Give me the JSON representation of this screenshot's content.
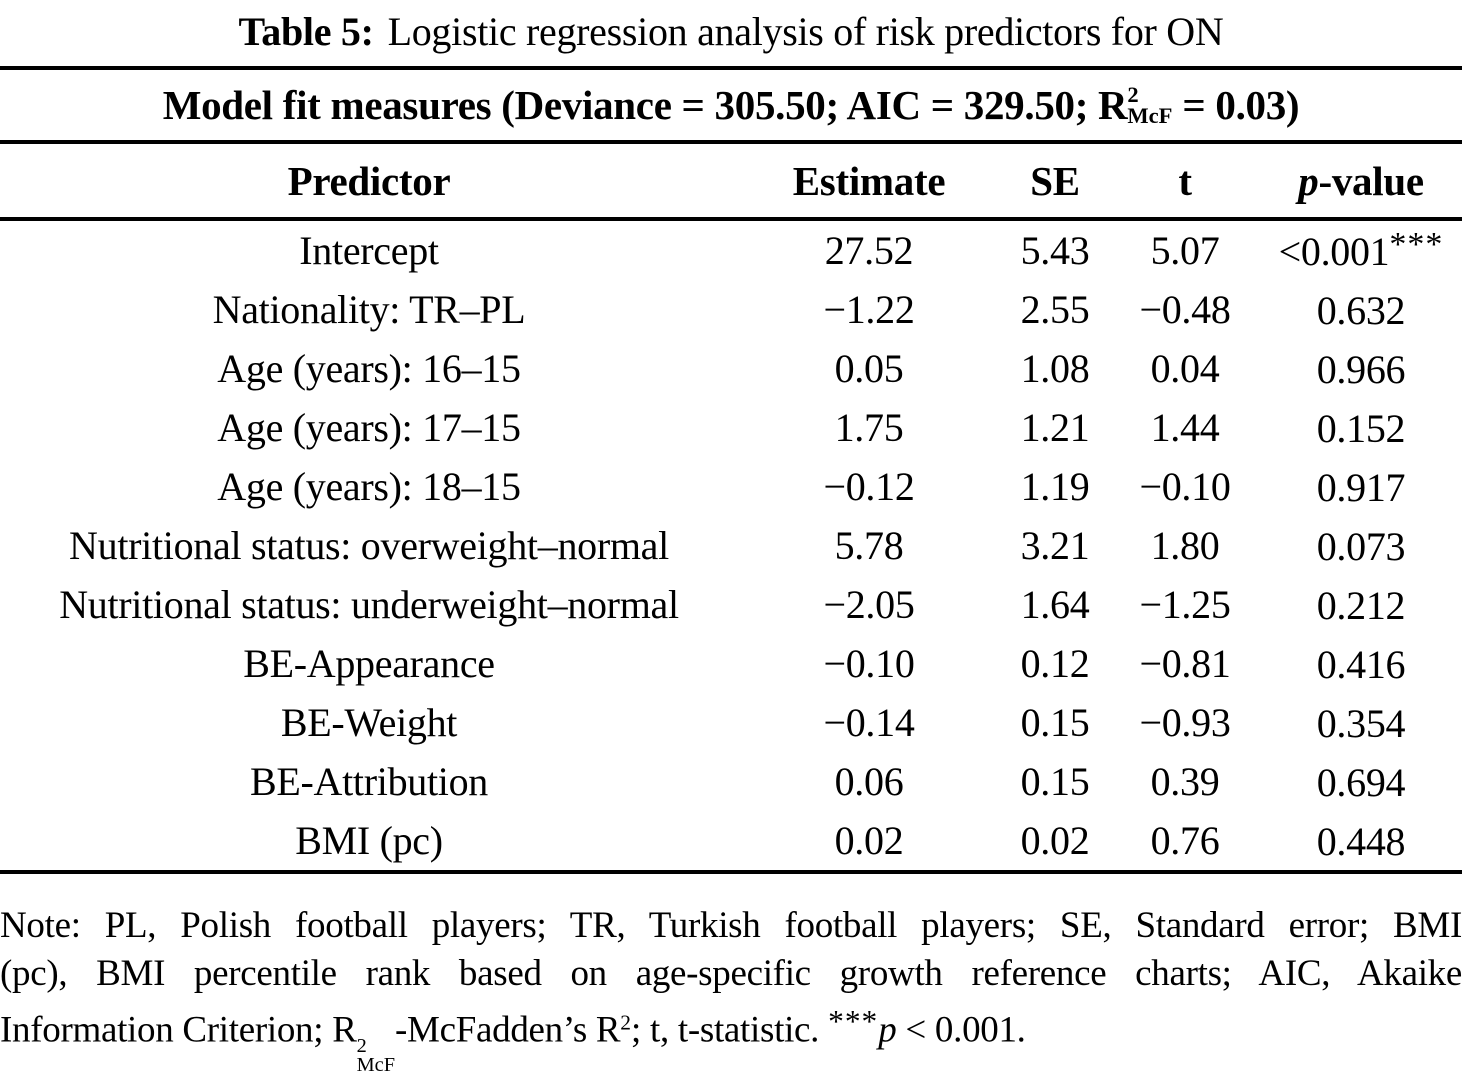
{
  "caption": {
    "label": "Table 5:",
    "text": "Logistic regression analysis of risk predictors for ON"
  },
  "model_fit": {
    "prefix": "Model fit measures (Deviance = 305.50; AIC = 329.50; R",
    "sup": "2",
    "sub": "McF",
    "suffix": " = 0.03)"
  },
  "columns": {
    "predictor": "Predictor",
    "estimate": "Estimate",
    "se": "SE",
    "t": "t",
    "p_italic": "p",
    "p_suffix": "-value"
  },
  "table": {
    "rows": [
      {
        "predictor": "Intercept",
        "estimate": "27.52",
        "se": "5.43",
        "t": "5.07",
        "p": "<0.001",
        "p_sup": "***"
      },
      {
        "predictor": "Nationality: TR–PL",
        "estimate": "−1.22",
        "se": "2.55",
        "t": "−0.48",
        "p": "0.632",
        "p_sup": ""
      },
      {
        "predictor": "Age (years): 16–15",
        "estimate": "0.05",
        "se": "1.08",
        "t": "0.04",
        "p": "0.966",
        "p_sup": ""
      },
      {
        "predictor": "Age (years): 17–15",
        "estimate": "1.75",
        "se": "1.21",
        "t": "1.44",
        "p": "0.152",
        "p_sup": ""
      },
      {
        "predictor": "Age (years): 18–15",
        "estimate": "−0.12",
        "se": "1.19",
        "t": "−0.10",
        "p": "0.917",
        "p_sup": ""
      },
      {
        "predictor": "Nutritional status: overweight–normal",
        "estimate": "5.78",
        "se": "3.21",
        "t": "1.80",
        "p": "0.073",
        "p_sup": ""
      },
      {
        "predictor": "Nutritional status: underweight–normal",
        "estimate": "−2.05",
        "se": "1.64",
        "t": "−1.25",
        "p": "0.212",
        "p_sup": ""
      },
      {
        "predictor": "BE-Appearance",
        "estimate": "−0.10",
        "se": "0.12",
        "t": "−0.81",
        "p": "0.416",
        "p_sup": ""
      },
      {
        "predictor": "BE-Weight",
        "estimate": "−0.14",
        "se": "0.15",
        "t": "−0.93",
        "p": "0.354",
        "p_sup": ""
      },
      {
        "predictor": "BE-Attribution",
        "estimate": "0.06",
        "se": "0.15",
        "t": "0.39",
        "p": "0.694",
        "p_sup": ""
      },
      {
        "predictor": "BMI (pc)",
        "estimate": "0.02",
        "se": "0.02",
        "t": "0.76",
        "p": "0.448",
        "p_sup": ""
      }
    ]
  },
  "note": {
    "line1": "Note: PL, Polish football players; TR, Turkish football players; SE, Standard error; BMI",
    "line2": "(pc), BMI percentile rank based on age-specific growth reference charts; AIC, Akaike",
    "line3": {
      "part1": "Information Criterion; R",
      "sup1": "2",
      "sub1": "McF",
      "part2": "-McFadden’s R",
      "sup2": "2",
      "part3": "; t, t-statistic. ",
      "stars": "***",
      "p": "p",
      "part4": " < 0.001."
    }
  },
  "colors": {
    "text": "#000000",
    "background": "#ffffff",
    "rule": "#000000"
  }
}
